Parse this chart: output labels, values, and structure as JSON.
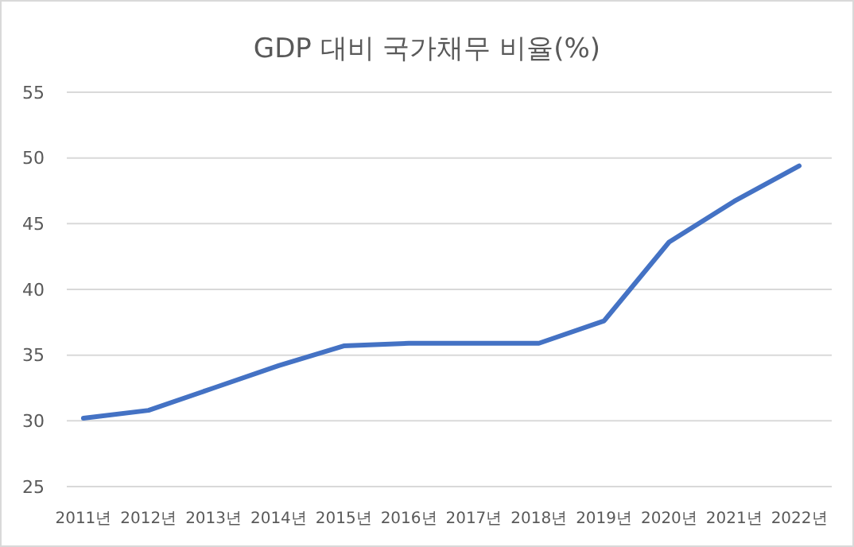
{
  "chart_data": {
    "type": "line",
    "title": "GDP 대비 국가채무 비율(%)",
    "categories": [
      "2011년",
      "2012년",
      "2013년",
      "2014년",
      "2015년",
      "2016년",
      "2017년",
      "2018년",
      "2019년",
      "2020년",
      "2021년",
      "2022년"
    ],
    "series": [
      {
        "color": "#4472c4",
        "values": [
          30.2,
          30.8,
          32.5,
          34.2,
          35.7,
          35.9,
          35.9,
          35.9,
          37.6,
          43.6,
          46.7,
          49.4
        ]
      }
    ],
    "ylim": [
      25,
      55
    ],
    "yticks": [
      25,
      30,
      35,
      40,
      45,
      50,
      55
    ],
    "grid": "y",
    "marker": "none",
    "line_style": "solid"
  }
}
